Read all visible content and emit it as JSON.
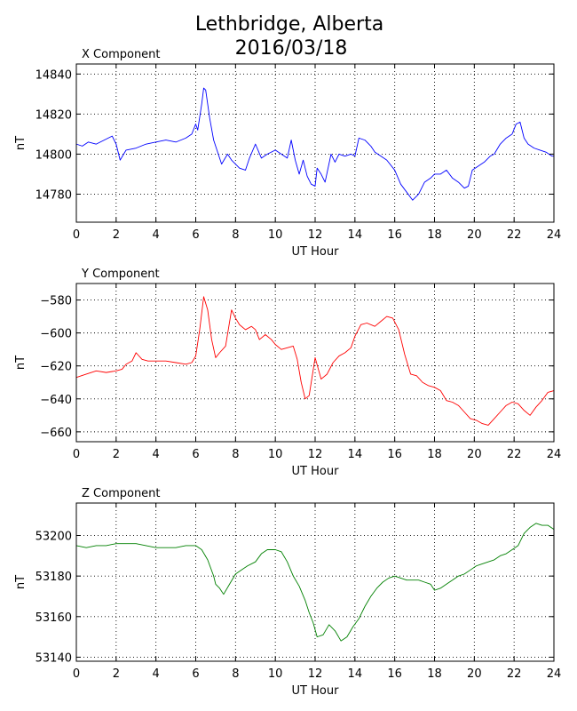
{
  "figure": {
    "title_line1": "Lethbridge, Alberta",
    "title_line2": "2016/03/18"
  },
  "chart_data": [
    {
      "type": "line",
      "title": "X Component",
      "xlabel": "UT Hour",
      "ylabel": "nT",
      "xlim": [
        0,
        24
      ],
      "ylim": [
        14766,
        14845
      ],
      "xticks": [
        0,
        2,
        4,
        6,
        8,
        10,
        12,
        14,
        16,
        18,
        20,
        22,
        24
      ],
      "yticks": [
        14780,
        14800,
        14820,
        14840
      ],
      "grid": true,
      "series": [
        {
          "color": "#0000ff",
          "x": [
            0,
            0.3,
            0.6,
            1,
            1.4,
            1.8,
            2,
            2.2,
            2.5,
            3,
            3.5,
            4,
            4.5,
            5,
            5.5,
            5.8,
            6,
            6.1,
            6.3,
            6.4,
            6.5,
            6.7,
            6.9,
            7.1,
            7.3,
            7.6,
            7.8,
            8,
            8.2,
            8.5,
            8.7,
            9,
            9.3,
            9.6,
            10,
            10.3,
            10.6,
            10.8,
            11,
            11.2,
            11.4,
            11.6,
            11.8,
            12,
            12.1,
            12.3,
            12.5,
            12.8,
            13,
            13.2,
            13.5,
            13.8,
            14,
            14.2,
            14.5,
            14.8,
            15,
            15.3,
            15.6,
            16,
            16.3,
            16.6,
            16.9,
            17.2,
            17.5,
            17.8,
            18,
            18.3,
            18.6,
            18.9,
            19.2,
            19.5,
            19.7,
            19.9,
            20.2,
            20.5,
            20.8,
            21,
            21.3,
            21.6,
            21.9,
            22.1,
            22.3,
            22.5,
            22.7,
            23,
            23.3,
            23.6,
            23.9,
            24
          ],
          "values": [
            14805,
            14804,
            14806,
            14805,
            14807,
            14809,
            14805,
            14797,
            14802,
            14803,
            14805,
            14806,
            14807,
            14806,
            14808,
            14810,
            14815,
            14812,
            14825,
            14833,
            14832,
            14818,
            14807,
            14801,
            14795,
            14800,
            14797,
            14795,
            14793,
            14792,
            14798,
            14805,
            14798,
            14800,
            14802,
            14800,
            14798,
            14807,
            14797,
            14790,
            14797,
            14789,
            14785,
            14784,
            14793,
            14790,
            14786,
            14800,
            14796,
            14800,
            14799,
            14800,
            14799,
            14808,
            14807,
            14804,
            14801,
            14799,
            14797,
            14792,
            14785,
            14781,
            14777,
            14780,
            14786,
            14788,
            14790,
            14790,
            14792,
            14788,
            14786,
            14783,
            14784,
            14792,
            14794,
            14796,
            14799,
            14800,
            14805,
            14808,
            14810,
            14815,
            14816,
            14808,
            14805,
            14803,
            14802,
            14801,
            14799,
            14799
          ]
        }
      ]
    },
    {
      "type": "line",
      "title": "Y Component",
      "xlabel": "UT Hour",
      "ylabel": "nT",
      "xlim": [
        0,
        24
      ],
      "ylim": [
        -666,
        -570
      ],
      "xticks": [
        0,
        2,
        4,
        6,
        8,
        10,
        12,
        14,
        16,
        18,
        20,
        22,
        24
      ],
      "yticks": [
        -580,
        -600,
        -620,
        -640,
        -660
      ],
      "grid": true,
      "series": [
        {
          "color": "#ff0000",
          "x": [
            0,
            0.5,
            1,
            1.5,
            2,
            2.3,
            2.5,
            2.8,
            3,
            3.3,
            3.6,
            4,
            4.5,
            5,
            5.5,
            5.8,
            6,
            6.2,
            6.4,
            6.6,
            6.8,
            7,
            7.2,
            7.5,
            7.8,
            8,
            8.2,
            8.5,
            8.8,
            9,
            9.2,
            9.5,
            9.8,
            10,
            10.3,
            10.6,
            10.9,
            11.1,
            11.3,
            11.5,
            11.7,
            12,
            12.3,
            12.6,
            12.9,
            13.2,
            13.5,
            13.8,
            14,
            14.3,
            14.6,
            15,
            15.3,
            15.6,
            15.9,
            16.2,
            16.5,
            16.8,
            17.1,
            17.4,
            17.7,
            18,
            18.3,
            18.6,
            18.9,
            19.2,
            19.5,
            19.8,
            20.1,
            20.4,
            20.7,
            21,
            21.3,
            21.6,
            21.9,
            22.2,
            22.5,
            22.8,
            23.1,
            23.4,
            23.7,
            24
          ],
          "values": [
            -627,
            -625,
            -623,
            -624,
            -623,
            -622,
            -619,
            -617,
            -612,
            -616,
            -617,
            -617,
            -617,
            -618,
            -619,
            -618,
            -614,
            -598,
            -578,
            -586,
            -604,
            -615,
            -612,
            -608,
            -586,
            -591,
            -595,
            -598,
            -596,
            -598,
            -604,
            -601,
            -604,
            -607,
            -610,
            -609,
            -608,
            -616,
            -630,
            -640,
            -638,
            -615,
            -628,
            -625,
            -618,
            -614,
            -612,
            -609,
            -602,
            -595,
            -594,
            -596,
            -593,
            -590,
            -591,
            -598,
            -613,
            -625,
            -626,
            -630,
            -632,
            -633,
            -635,
            -641,
            -642,
            -644,
            -648,
            -652,
            -653,
            -655,
            -656,
            -652,
            -648,
            -644,
            -642,
            -643,
            -647,
            -650,
            -645,
            -641,
            -636,
            -635
          ]
        }
      ]
    },
    {
      "type": "line",
      "title": "Z Component",
      "xlabel": "UT Hour",
      "ylabel": "nT",
      "xlim": [
        0,
        24
      ],
      "ylim": [
        53138,
        53216
      ],
      "xticks": [
        0,
        2,
        4,
        6,
        8,
        10,
        12,
        14,
        16,
        18,
        20,
        22,
        24
      ],
      "yticks": [
        53140,
        53160,
        53180,
        53200
      ],
      "grid": true,
      "series": [
        {
          "color": "#008000",
          "x": [
            0,
            0.5,
            1,
            1.5,
            2,
            2.5,
            3,
            3.5,
            4,
            4.5,
            5,
            5.5,
            6,
            6.3,
            6.6,
            6.9,
            7,
            7.2,
            7.4,
            7.7,
            8,
            8.3,
            8.6,
            9,
            9.3,
            9.6,
            10,
            10.3,
            10.6,
            10.9,
            11.2,
            11.5,
            11.7,
            11.9,
            12.1,
            12.4,
            12.7,
            13,
            13.3,
            13.6,
            13.9,
            14.2,
            14.5,
            14.8,
            15.1,
            15.4,
            15.7,
            16,
            16.3,
            16.6,
            16.9,
            17.2,
            17.5,
            17.8,
            18,
            18.3,
            18.6,
            18.9,
            19.2,
            19.5,
            19.8,
            20.1,
            20.4,
            20.7,
            21,
            21.3,
            21.6,
            21.9,
            22.2,
            22.5,
            22.8,
            23.1,
            23.4,
            23.7,
            24
          ],
          "values": [
            53195,
            53194,
            53195,
            53195,
            53196,
            53196,
            53196,
            53195,
            53194,
            53194,
            53194,
            53195,
            53195,
            53193,
            53188,
            53180,
            53176,
            53174,
            53171,
            53176,
            53181,
            53183,
            53185,
            53187,
            53191,
            53193,
            53193,
            53192,
            53187,
            53180,
            53175,
            53168,
            53162,
            53157,
            53150,
            53151,
            53156,
            53153,
            53148,
            53150,
            53155,
            53159,
            53165,
            53170,
            53174,
            53177,
            53179,
            53180,
            53179,
            53178,
            53178,
            53178,
            53177,
            53176,
            53173,
            53174,
            53176,
            53178,
            53180,
            53181,
            53183,
            53185,
            53186,
            53187,
            53188,
            53190,
            53191,
            53193,
            53195,
            53201,
            53204,
            53206,
            53205,
            53205,
            53203
          ]
        }
      ]
    }
  ]
}
